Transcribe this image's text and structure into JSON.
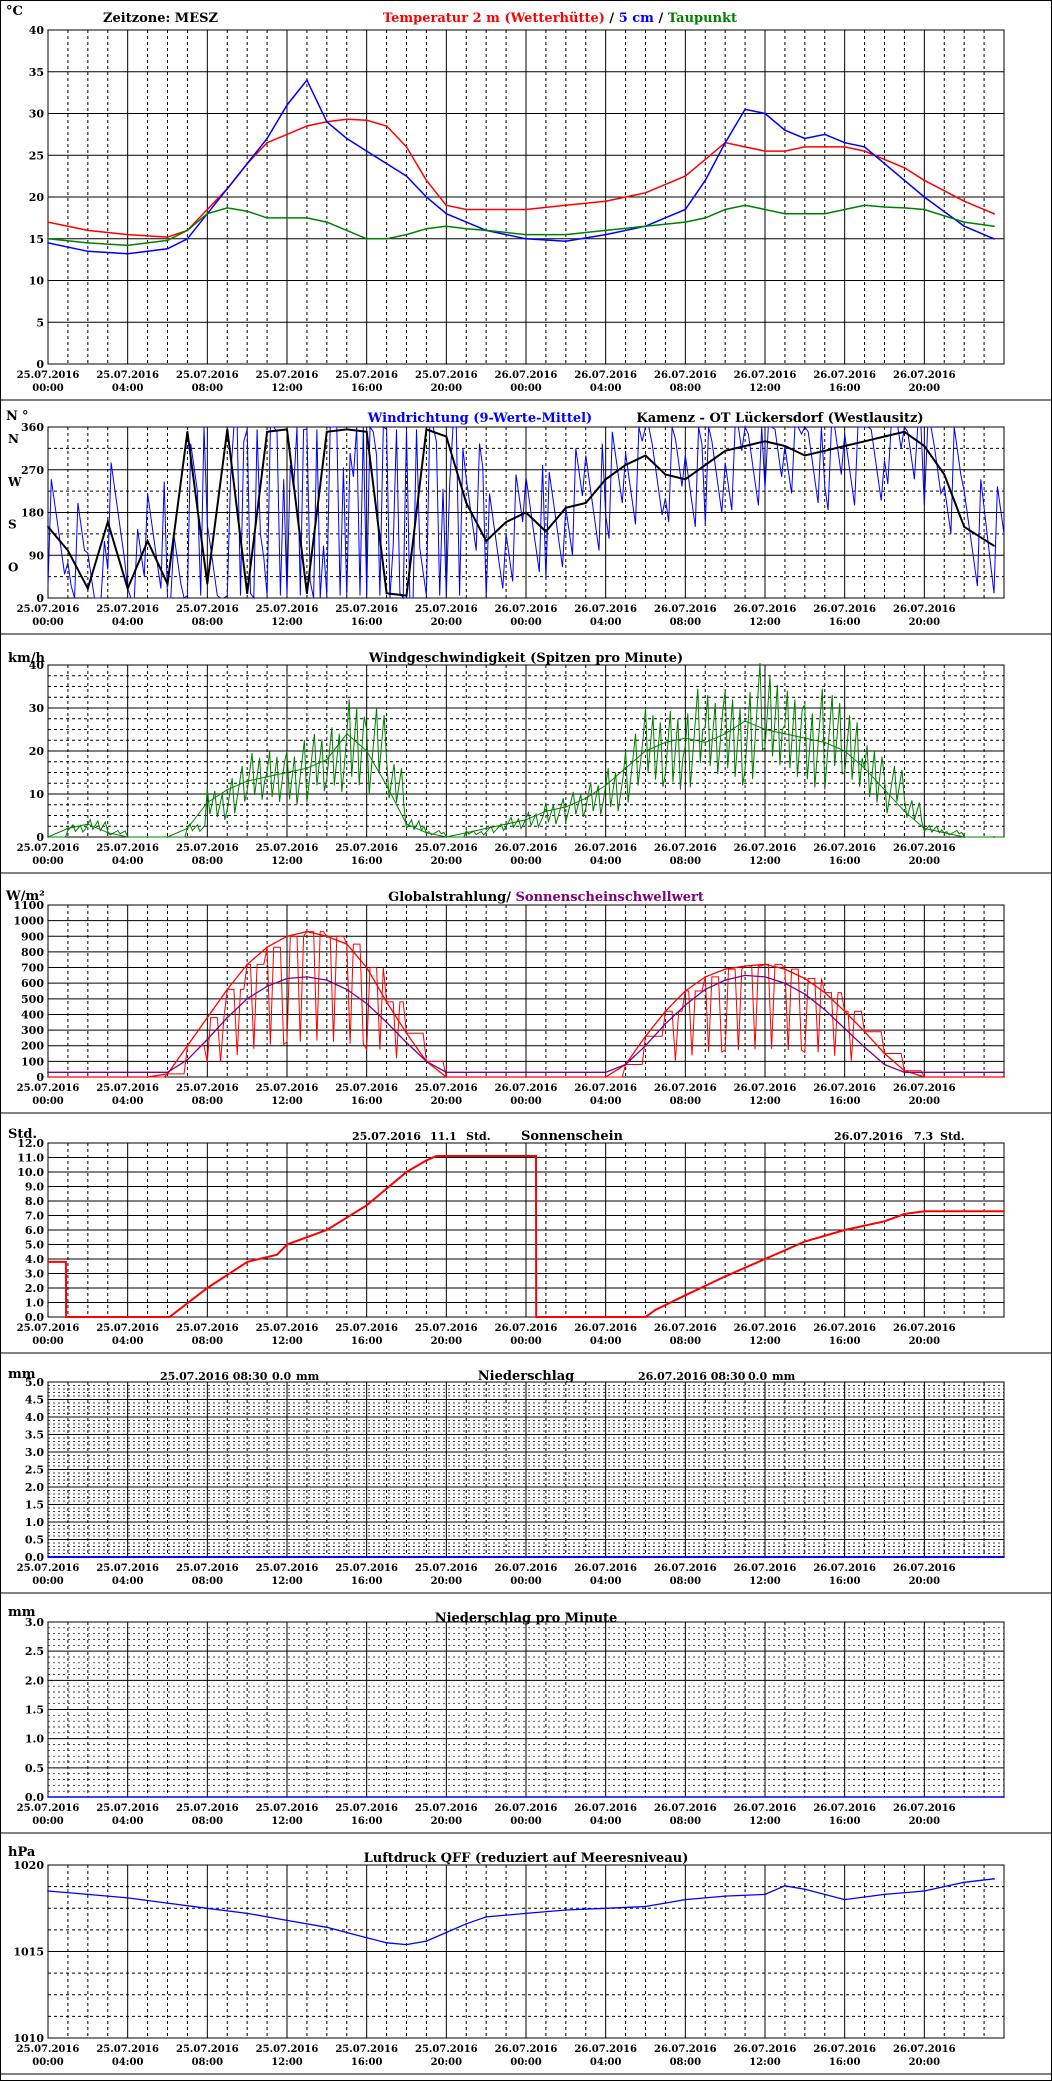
{
  "x_ticks": [
    {
      "date": "25.07.2016",
      "time": "00:00"
    },
    {
      "date": "25.07.2016",
      "time": "04:00"
    },
    {
      "date": "25.07.2016",
      "time": "08:00"
    },
    {
      "date": "25.07.2016",
      "time": "12:00"
    },
    {
      "date": "25.07.2016",
      "time": "16:00"
    },
    {
      "date": "25.07.2016",
      "time": "20:00"
    },
    {
      "date": "26.07.2016",
      "time": "00:00"
    },
    {
      "date": "26.07.2016",
      "time": "04:00"
    },
    {
      "date": "26.07.2016",
      "time": "08:00"
    },
    {
      "date": "26.07.2016",
      "time": "12:00"
    },
    {
      "date": "26.07.2016",
      "time": "16:00"
    },
    {
      "date": "26.07.2016",
      "time": "20:00"
    }
  ],
  "chart_data": [
    {
      "type": "line",
      "unit": "°C",
      "zone": "Zeitzone: MESZ",
      "title_parts": [
        {
          "text": "Temperatur 2 m (Wetterhütte)",
          "color": "#ff0000"
        },
        {
          "text": "  /  ",
          "color": "#000000"
        },
        {
          "text": "5 cm",
          "color": "#0000ff"
        },
        {
          "text": " / ",
          "color": "#000000"
        },
        {
          "text": "Taupunkt",
          "color": "#008000"
        }
      ],
      "ylim": [
        0,
        40
      ],
      "yticks": [
        0,
        5,
        10,
        15,
        20,
        25,
        30,
        35,
        40
      ],
      "x_hours": [
        0,
        2,
        4,
        6,
        7,
        8,
        9,
        10,
        11,
        12,
        13,
        14,
        15,
        16,
        17,
        18,
        19,
        20,
        21,
        22,
        24,
        26,
        28,
        30,
        32,
        33,
        34,
        35,
        36,
        37,
        38,
        39,
        40,
        41,
        42,
        43,
        44,
        46,
        47.5
      ],
      "series": [
        {
          "name": "Temperatur 2 m (Wetterhütte)",
          "color": "#ff0000",
          "values": [
            17,
            16,
            15.5,
            15.2,
            16,
            18.5,
            21,
            24,
            26.5,
            27.5,
            28.5,
            29,
            29.3,
            29.2,
            28.5,
            26,
            22,
            19,
            18.5,
            18.5,
            18.5,
            19,
            19.5,
            20.5,
            22.5,
            24.5,
            26.5,
            26,
            25.5,
            25.5,
            26,
            26,
            26,
            25.5,
            24.5,
            23.5,
            22,
            19.5,
            18
          ]
        },
        {
          "name": "5 cm",
          "color": "#0000ff",
          "values": [
            14.5,
            13.5,
            13.2,
            13.8,
            15,
            18,
            21,
            24,
            27,
            31,
            34,
            29,
            27,
            25.5,
            24,
            22.5,
            20,
            18,
            17,
            16,
            15,
            14.7,
            15.5,
            16.5,
            18.5,
            22,
            26.5,
            30.5,
            30,
            28,
            27,
            27.5,
            26.5,
            26,
            24,
            22,
            20,
            16.5,
            15
          ]
        },
        {
          "name": "Taupunkt",
          "color": "#008000",
          "values": [
            15,
            14.5,
            14.2,
            14.8,
            16,
            18,
            18.7,
            18.3,
            17.5,
            17.5,
            17.5,
            17,
            16,
            15,
            15,
            15.5,
            16.2,
            16.5,
            16.2,
            16,
            15.5,
            15.5,
            16,
            16.5,
            17,
            17.5,
            18.5,
            19,
            18.5,
            18,
            18,
            18,
            18.5,
            19,
            18.8,
            18.7,
            18.5,
            17,
            16.5
          ]
        }
      ]
    },
    {
      "type": "scatter",
      "title": "Windrichtung (9-Werte-Mittel)",
      "title_color": "#0000ff",
      "location": "Kamenz - OT Lückersdorf (Westlausitz)",
      "unit_left": "N",
      "unit_right": "°",
      "ylim": [
        0,
        360
      ],
      "yticks": [
        0,
        90,
        180,
        270,
        360
      ],
      "compass_labels": [
        "N",
        "O",
        "S",
        "W"
      ],
      "series": [
        {
          "name": "Windrichtung",
          "color": "#0000ff"
        },
        {
          "name": "9-Werte-Mittel",
          "color": "#000000"
        }
      ],
      "x_hours": [
        0,
        1,
        2,
        3,
        4,
        5,
        6,
        7,
        8,
        9,
        10,
        11,
        12,
        13,
        14,
        15,
        16,
        17,
        18,
        19,
        20,
        21,
        22,
        23,
        24,
        25,
        26,
        27,
        28,
        29,
        30,
        31,
        32,
        33,
        34,
        35,
        36,
        37,
        38,
        39,
        40,
        41,
        42,
        43,
        44,
        45,
        46,
        47.5
      ],
      "mean_values": [
        150,
        100,
        20,
        160,
        20,
        120,
        30,
        350,
        30,
        355,
        10,
        350,
        355,
        10,
        350,
        355,
        350,
        10,
        5,
        355,
        340,
        200,
        120,
        160,
        180,
        140,
        190,
        200,
        250,
        280,
        300,
        260,
        250,
        280,
        310,
        320,
        330,
        320,
        300,
        310,
        320,
        330,
        340,
        350,
        320,
        260,
        150,
        110
      ]
    },
    {
      "type": "line",
      "title": "Windgeschwindigkeit (Spitzen pro Minute)",
      "unit": "km/h",
      "color": "#008000",
      "ylim": [
        0,
        40
      ],
      "yticks": [
        0,
        10,
        20,
        30,
        40
      ],
      "x_hours": [
        0,
        1,
        2,
        3,
        4,
        5,
        6,
        7,
        8,
        9,
        10,
        11,
        12,
        13,
        14,
        15,
        16,
        17,
        18,
        19,
        20,
        21,
        22,
        23,
        24,
        25,
        26,
        27,
        28,
        29,
        30,
        31,
        32,
        33,
        34,
        35,
        36,
        37,
        38,
        39,
        40,
        41,
        42,
        43,
        44,
        45,
        46,
        47.5
      ],
      "values": [
        0,
        2,
        3,
        1,
        0,
        0,
        0,
        2,
        8,
        11,
        13,
        14,
        15,
        16,
        18,
        24,
        20,
        12,
        3,
        1,
        0,
        1,
        2,
        3,
        4,
        6,
        7,
        9,
        12,
        16,
        20,
        22,
        23,
        22,
        24,
        27,
        25,
        24,
        23,
        22,
        20,
        16,
        11,
        6,
        2,
        1,
        0,
        0
      ]
    },
    {
      "type": "line",
      "title_parts": [
        {
          "text": "Globalstrahlung/ ",
          "color": "#000000"
        },
        {
          "text": "Sonnenscheinschwellwert",
          "color": "#800080"
        }
      ],
      "unit": "W/m²",
      "ylim": [
        0,
        1100
      ],
      "yticks": [
        0,
        100,
        200,
        300,
        400,
        500,
        600,
        700,
        800,
        900,
        1000,
        1100
      ],
      "x_hours": [
        0,
        5,
        6,
        7,
        8,
        9,
        10,
        11,
        12,
        13,
        14,
        15,
        16,
        17,
        18,
        19,
        20,
        24,
        28,
        29,
        30,
        31,
        32,
        33,
        34,
        35,
        36,
        37,
        38,
        39,
        40,
        41,
        42,
        43,
        44,
        48
      ],
      "series": [
        {
          "name": "Globalstrahlung",
          "color": "#ff0000",
          "values": [
            0,
            0,
            20,
            200,
            380,
            560,
            720,
            830,
            900,
            930,
            900,
            850,
            700,
            480,
            280,
            100,
            0,
            0,
            0,
            80,
            260,
            420,
            550,
            640,
            690,
            710,
            720,
            690,
            630,
            540,
            420,
            290,
            150,
            40,
            0,
            0
          ]
        },
        {
          "name": "Sonnenscheinschwellwert",
          "color": "#800080",
          "values": [
            30,
            30,
            30,
            110,
            240,
            380,
            500,
            580,
            630,
            640,
            620,
            560,
            470,
            350,
            220,
            100,
            30,
            30,
            30,
            80,
            200,
            340,
            460,
            560,
            620,
            650,
            640,
            600,
            530,
            430,
            310,
            190,
            80,
            30,
            30,
            30
          ]
        }
      ]
    },
    {
      "type": "line",
      "title": "Sonnenschein",
      "unit": "Std.",
      "color": "#ff0000",
      "ylim": [
        0,
        12
      ],
      "yticks": [
        0.0,
        1.0,
        2.0,
        3.0,
        4.0,
        5.0,
        6.0,
        7.0,
        8.0,
        9.0,
        10.0,
        11.0,
        12.0
      ],
      "day_totals": [
        {
          "date": "25.07.2016",
          "value": "11.1",
          "unit": "Std."
        },
        {
          "date": "26.07.2016",
          "value": "7.3",
          "unit": "Std."
        }
      ],
      "x_hours": [
        0,
        0.9,
        0.91,
        6.1,
        8,
        10,
        11.5,
        12,
        14,
        16,
        18,
        19,
        19.5,
        20,
        22,
        24.5,
        24.51,
        30,
        30.5,
        32,
        34,
        36,
        38,
        40,
        42,
        43,
        44,
        46,
        48
      ],
      "values": [
        3.8,
        3.8,
        0,
        0,
        2,
        3.8,
        4.3,
        5,
        6,
        7.7,
        10,
        10.8,
        11.1,
        11.1,
        11.1,
        11.1,
        0,
        0,
        0.5,
        1.5,
        2.8,
        4,
        5.2,
        6,
        6.6,
        7.1,
        7.3,
        7.3,
        7.3
      ]
    },
    {
      "type": "line",
      "title": "Niederschlag",
      "unit": "mm",
      "color": "#0000ff",
      "ylim": [
        0,
        5
      ],
      "yticks": [
        0.0,
        0.5,
        1.0,
        1.5,
        2.0,
        2.5,
        3.0,
        3.5,
        4.0,
        4.5,
        5.0
      ],
      "day_totals": [
        {
          "date": "25.07.2016 08:30",
          "value": "0.0",
          "unit": "mm"
        },
        {
          "date": "26.07.2016 08:30",
          "value": "0.0",
          "unit": "mm"
        }
      ],
      "x_hours": [
        0,
        48
      ],
      "values": [
        0,
        0
      ]
    },
    {
      "type": "line",
      "title": "Niederschlag pro Minute",
      "unit": "mm",
      "color": "#0000ff",
      "ylim": [
        0,
        3
      ],
      "yticks": [
        0.0,
        0.5,
        1.0,
        1.5,
        2.0,
        2.5,
        3.0
      ],
      "x_hours": [
        0,
        48
      ],
      "values": [
        0,
        0
      ]
    },
    {
      "type": "line",
      "title": "Luftdruck QFF (reduziert auf Meeresniveau)",
      "unit": "hPa",
      "color": "#0000ff",
      "ylim": [
        1010,
        1020
      ],
      "yticks": [
        1010,
        1015,
        1020
      ],
      "x_hours": [
        0,
        2,
        4,
        6,
        8,
        10,
        12,
        14,
        16,
        17,
        18,
        19,
        20,
        21,
        22,
        24,
        26,
        28,
        30,
        32,
        34,
        36,
        37,
        38,
        40,
        42,
        44,
        46,
        47.5
      ],
      "values": [
        1018.5,
        1018.3,
        1018.1,
        1017.8,
        1017.5,
        1017.2,
        1016.8,
        1016.4,
        1015.8,
        1015.5,
        1015.4,
        1015.6,
        1016.1,
        1016.6,
        1017.0,
        1017.2,
        1017.4,
        1017.5,
        1017.6,
        1018.0,
        1018.2,
        1018.3,
        1018.8,
        1018.6,
        1018.0,
        1018.3,
        1018.5,
        1019.0,
        1019.2
      ]
    }
  ]
}
